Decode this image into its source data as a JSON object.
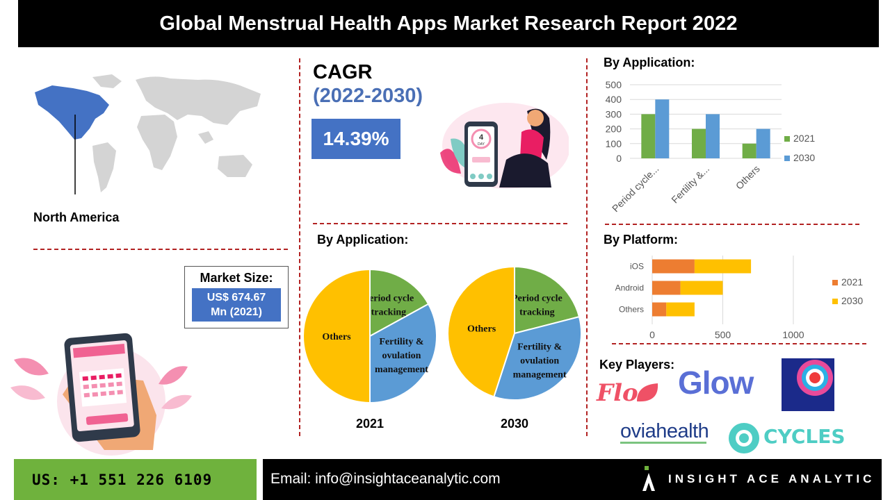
{
  "header": {
    "title": "Global Menstrual Health Apps Market Research Report 2022"
  },
  "region": {
    "label": "North America",
    "highlight_color": "#4472c4"
  },
  "market_size": {
    "title": "Market Size:",
    "value_line1": "US$ 674.67",
    "value_line2": "Mn (2021)"
  },
  "cagr": {
    "title": "CAGR",
    "period": "(2022-2030)",
    "value": "14.39%",
    "illustration_day": "4",
    "illustration_day_label": "DAY"
  },
  "by_application_pie": {
    "title": "By Application:"
  },
  "by_application_bar": {
    "title": "By Application:"
  },
  "by_platform": {
    "title": "By Platform:"
  },
  "key_players": {
    "title": "Key Players:",
    "logos": [
      "Flo",
      "Glow",
      "oviahealth",
      "CYCLES"
    ]
  },
  "footer": {
    "phone": "US: +1 551 226 6109",
    "email": "Email: info@insightaceanalytic.com",
    "brand": "INSIGHT ACE ANALYTIC"
  },
  "colors": {
    "green": "#70ad47",
    "blue": "#5b9bd5",
    "orange": "#ed7d31",
    "yellow": "#ffc000",
    "dash": "#b22222"
  },
  "chart_data": [
    {
      "type": "pie",
      "title": "2021",
      "labels": [
        "Period cycle tracking",
        "Fertility & ovulation management",
        "Others"
      ],
      "values": [
        17,
        33,
        50
      ],
      "colors": [
        "#70ad47",
        "#5b9bd5",
        "#ffc000"
      ]
    },
    {
      "type": "pie",
      "title": "2030",
      "labels": [
        "Period cycle tracking",
        "Fertility & ovulation management",
        "Others"
      ],
      "values": [
        21,
        34,
        45
      ],
      "colors": [
        "#70ad47",
        "#5b9bd5",
        "#ffc000"
      ]
    },
    {
      "type": "bar",
      "title": "By Application:",
      "categories": [
        "Period cycle...",
        "Fertility &...",
        "Others"
      ],
      "series": [
        {
          "name": "2021",
          "values": [
            300,
            200,
            100
          ],
          "color": "#70ad47"
        },
        {
          "name": "2030",
          "values": [
            400,
            300,
            200
          ],
          "color": "#5b9bd5"
        }
      ],
      "yticks": [
        "0",
        "100",
        "200",
        "300",
        "400",
        "500"
      ],
      "ylim": [
        0,
        500
      ],
      "grid": true,
      "legend": "right"
    },
    {
      "type": "bar",
      "orientation": "horizontal",
      "stacked": true,
      "title": "By Platform:",
      "categories": [
        "iOS",
        "Android",
        "Others"
      ],
      "series": [
        {
          "name": "2021",
          "values": [
            300,
            200,
            100
          ],
          "color": "#ed7d31"
        },
        {
          "name": "2030",
          "values": [
            400,
            300,
            200
          ],
          "color": "#ffc000"
        }
      ],
      "xticks": [
        "0",
        "500",
        "1000"
      ],
      "xlim": [
        0,
        1000
      ],
      "grid": true,
      "legend": "right"
    }
  ]
}
